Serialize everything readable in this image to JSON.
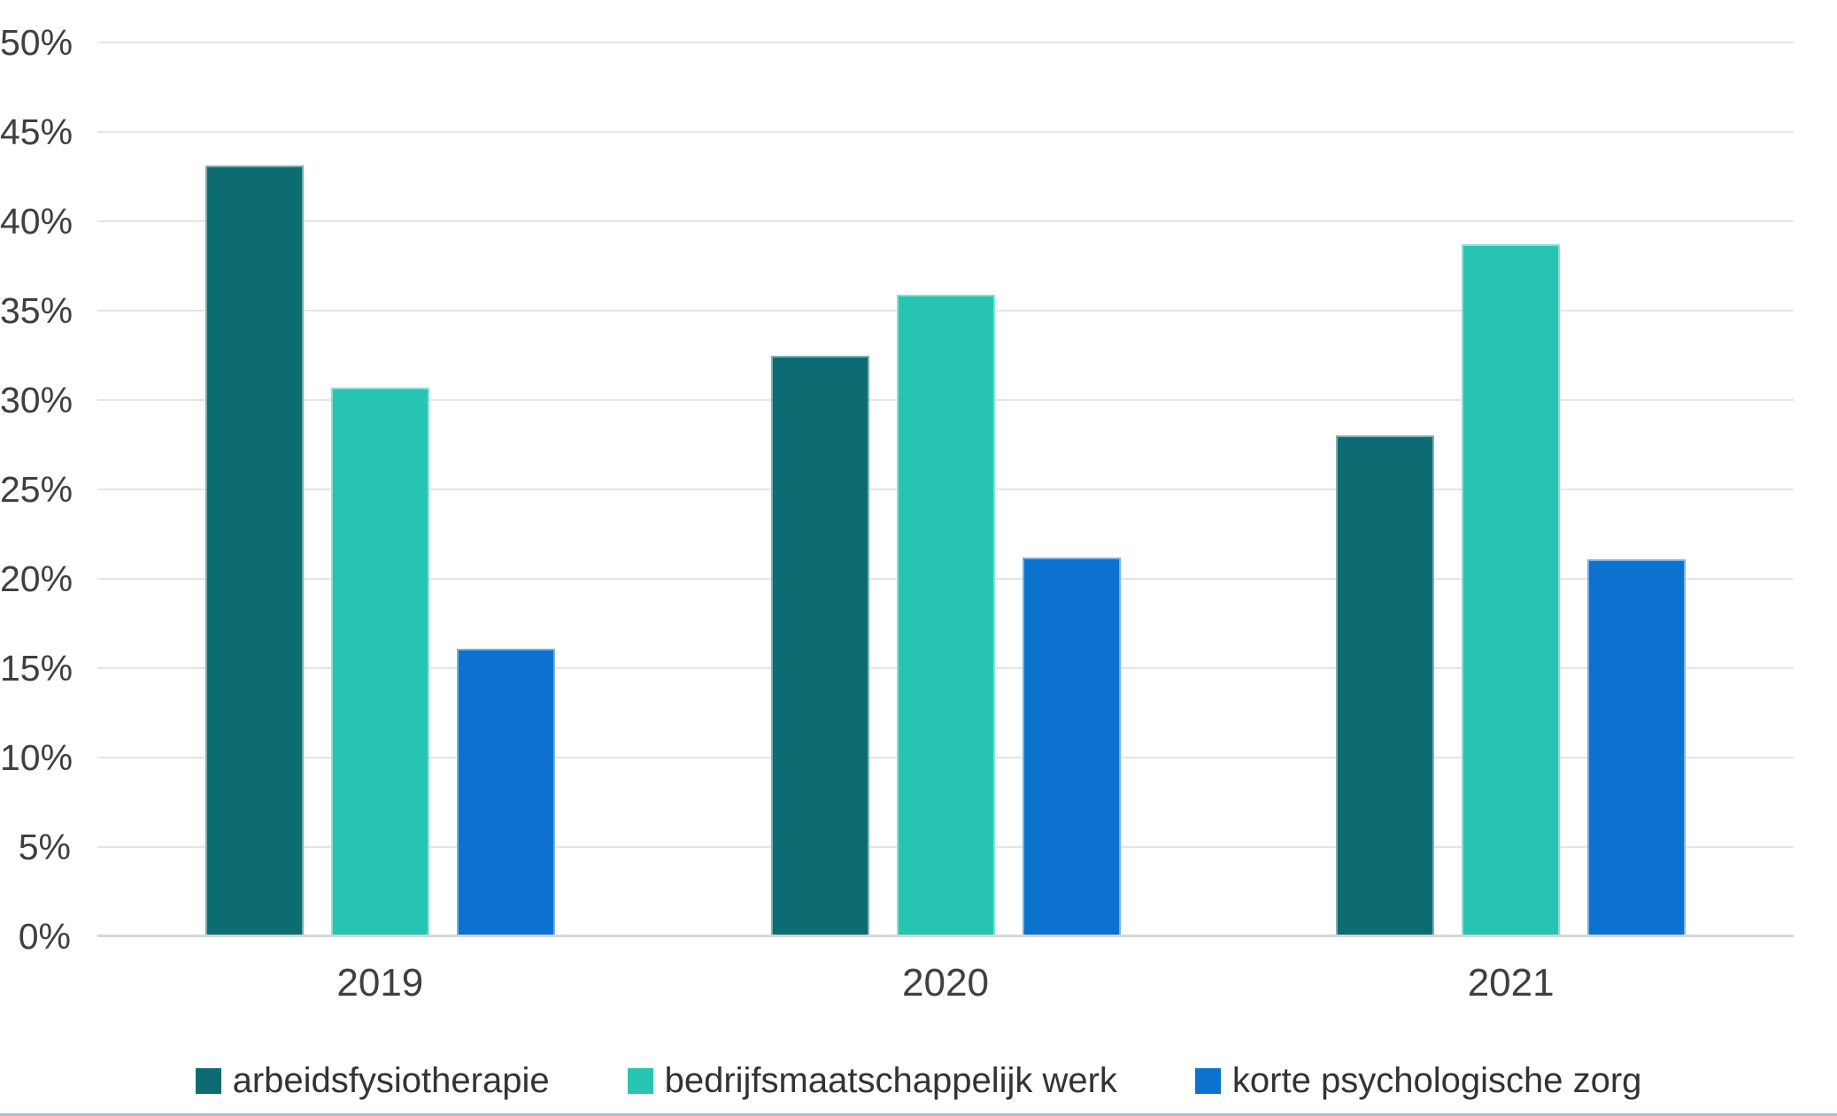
{
  "chart_data": {
    "type": "bar",
    "title": "",
    "xlabel": "",
    "ylabel": "",
    "categories": [
      "2019",
      "2020",
      "2021"
    ],
    "series": [
      {
        "name": "arbeidsfysiotherapie",
        "color": "#0d6c72",
        "values": [
          43.1,
          32.5,
          28.0
        ]
      },
      {
        "name": "bedrijfsmaatschappelijk werk",
        "color": "#27c5b1",
        "values": [
          30.7,
          35.9,
          38.7
        ]
      },
      {
        "name": "korte psychologische zorg",
        "color": "#0b72cf",
        "values": [
          16.1,
          21.2,
          21.1
        ]
      }
    ],
    "ylim": [
      0,
      50
    ],
    "ytick_step": 5,
    "ytick_labels": [
      "0%",
      "5%",
      "10%",
      "15%",
      "20%",
      "25%",
      "30%",
      "35%",
      "40%",
      "45%",
      "50%"
    ],
    "grid": true,
    "legend_position": "bottom"
  },
  "colors": {
    "background": "#ffffff",
    "grid": "#e4e4e4",
    "axis_line": "#d6d6d6",
    "axis_text": "#3f3f3f",
    "legend_text": "#333333",
    "bottom_rule": "#aebfca"
  }
}
